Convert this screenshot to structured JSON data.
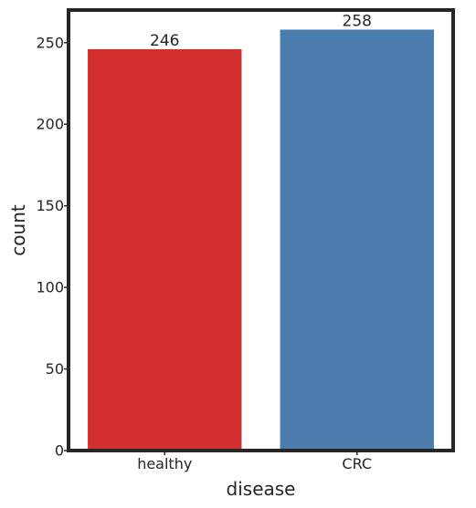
{
  "chart_data": {
    "type": "bar",
    "categories": [
      "healthy",
      "CRC"
    ],
    "values": [
      246,
      258
    ],
    "data_labels": [
      "246",
      "258"
    ],
    "colors": [
      "#d32f2f",
      "#4a7dad"
    ],
    "frame_color": "#262626",
    "xlabel": "disease",
    "ylabel": "count",
    "ylim": [
      0,
      270
    ],
    "yticks": [
      0,
      50,
      100,
      150,
      200,
      250
    ],
    "grid": false
  }
}
